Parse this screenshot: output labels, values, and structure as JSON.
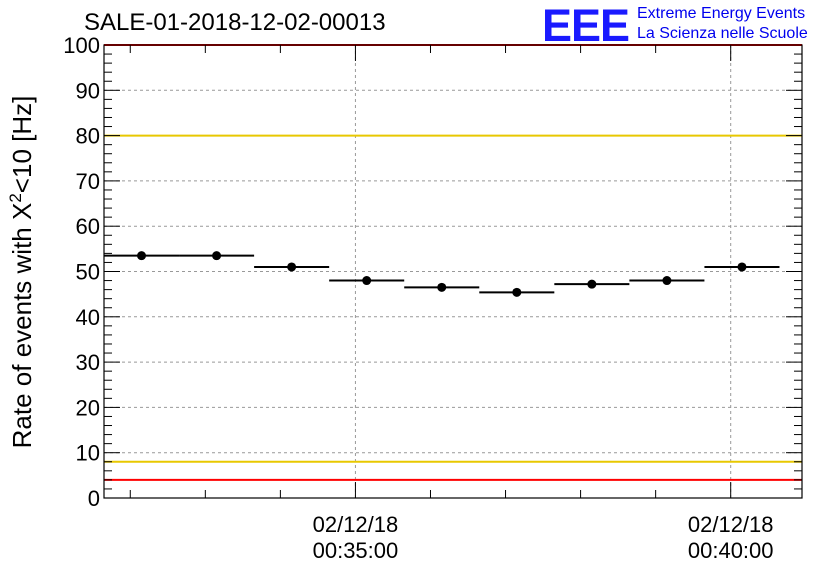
{
  "header": {
    "title": "SALE-01-2018-12-02-00013"
  },
  "logo": {
    "mark": "EEE",
    "line1": "Extreme Energy Events",
    "line2": "La Scienza nelle Scuole",
    "color": "#1a1aff"
  },
  "chart_data": {
    "type": "scatter",
    "title": "SALE-01-2018-12-02-00013",
    "ylabel_main": "Rate of events with X",
    "ylabel_sup": "2",
    "ylabel_tail": "<10 [Hz]",
    "ylim": [
      0,
      100
    ],
    "y_ticks": [
      "0",
      "10",
      "20",
      "30",
      "40",
      "50",
      "60",
      "70",
      "80",
      "90",
      "100"
    ],
    "x_tick_labels": [
      {
        "date": "02/12/18",
        "time": "00:35:00",
        "minute": 35.0
      },
      {
        "date": "02/12/18",
        "time": "00:40:00",
        "minute": 40.0
      }
    ],
    "xlim_minutes": [
      31.65,
      40.95
    ],
    "grid": true,
    "points": [
      {
        "x": 32.15,
        "y": 53.5
      },
      {
        "x": 33.15,
        "y": 53.5
      },
      {
        "x": 34.15,
        "y": 51.0
      },
      {
        "x": 35.15,
        "y": 48.0
      },
      {
        "x": 36.15,
        "y": 46.5
      },
      {
        "x": 37.15,
        "y": 45.4
      },
      {
        "x": 38.15,
        "y": 47.2
      },
      {
        "x": 39.15,
        "y": 48.0
      },
      {
        "x": 40.15,
        "y": 51.0
      }
    ],
    "bin_width_minutes": 1.0,
    "reference_lines": [
      {
        "y": 100,
        "color": "#ff0000"
      },
      {
        "y": 80,
        "color": "#e8c800"
      },
      {
        "y": 8,
        "color": "#e8c800"
      },
      {
        "y": 4,
        "color": "#ff0000"
      }
    ],
    "point_color": "#000000"
  }
}
